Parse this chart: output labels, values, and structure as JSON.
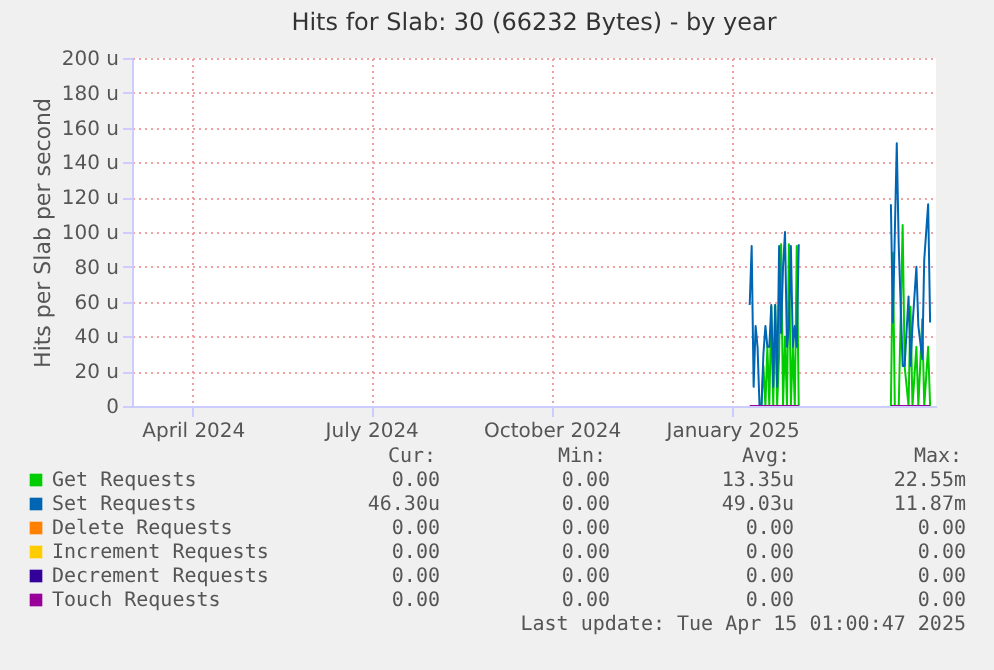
{
  "chart_data": {
    "type": "line",
    "title": "Hits for Slab: 30 (66232 Bytes) - by year",
    "ylabel": "Hits per Slab per second",
    "xlim": [
      "2024-03-01",
      "2025-04-15"
    ],
    "xticks": [
      {
        "value": "2024-04-01",
        "label": "April 2024"
      },
      {
        "value": "2024-07-01",
        "label": "July 2024"
      },
      {
        "value": "2024-10-01",
        "label": "October 2024"
      },
      {
        "value": "2025-01-01",
        "label": "January 2025"
      }
    ],
    "ylim": [
      0,
      200
    ],
    "yticks": [
      0,
      {
        "value": 20,
        "label": "20 u"
      },
      {
        "value": 40,
        "label": "40 u"
      },
      {
        "value": 60,
        "label": "60 u"
      },
      {
        "value": 80,
        "label": "80 u"
      },
      {
        "value": 100,
        "label": "100 u"
      },
      {
        "value": 120,
        "label": "120 u"
      },
      {
        "value": 140,
        "label": "140 u"
      },
      {
        "value": 160,
        "label": "160 u"
      },
      {
        "value": 180,
        "label": "180 u"
      },
      {
        "value": 200,
        "label": "200 u"
      }
    ],
    "grid": true,
    "legend": "bottom",
    "series": [
      {
        "name": "Get Requests",
        "color": "#00cc00",
        "x": [
          "2025-01-16",
          "2025-01-17",
          "2025-01-18",
          "2025-01-19",
          "2025-01-20",
          "2025-01-21",
          "2025-01-22",
          "2025-01-23",
          "2025-01-24",
          "2025-01-25",
          "2025-01-26",
          "2025-01-27",
          "2025-01-28",
          "2025-01-29",
          "2025-01-30",
          "2025-01-31",
          "2025-02-01",
          "2025-02-02",
          "2025-02-03",
          "2025-02-04",
          "2025-02-20",
          "2025-03-23",
          "2025-03-24",
          "2025-03-25",
          "2025-03-27",
          "2025-03-29",
          "2025-03-30",
          "2025-04-01",
          "2025-04-02",
          "2025-04-03",
          "2025-04-05",
          "2025-04-06",
          "2025-04-08",
          "2025-04-09",
          "2025-04-11",
          "2025-04-12"
        ],
        "values": [
          0,
          23,
          0,
          34,
          0,
          57,
          0,
          58,
          0,
          30,
          93,
          0,
          40,
          0,
          93,
          0,
          34,
          0,
          92,
          0,
          null,
          0,
          88,
          0,
          0,
          104,
          23,
          0,
          57,
          0,
          34,
          0,
          50,
          0,
          34,
          0
        ]
      },
      {
        "name": "Set Requests",
        "color": "#0066b3",
        "x": [
          "2025-01-10",
          "2025-01-11",
          "2025-01-12",
          "2025-01-13",
          "2025-01-14",
          "2025-01-15",
          "2025-01-16",
          "2025-01-17",
          "2025-01-18",
          "2025-01-19",
          "2025-01-20",
          "2025-01-21",
          "2025-01-22",
          "2025-01-23",
          "2025-01-24",
          "2025-01-25",
          "2025-01-26",
          "2025-01-27",
          "2025-01-28",
          "2025-01-29",
          "2025-01-30",
          "2025-01-31",
          "2025-02-01",
          "2025-02-02",
          "2025-02-03",
          "2025-02-04",
          "2025-02-20",
          "2025-03-23",
          "2025-03-24",
          "2025-03-26",
          "2025-03-27",
          "2025-03-29",
          "2025-03-30",
          "2025-04-01",
          "2025-04-02",
          "2025-04-03",
          "2025-04-05",
          "2025-04-06",
          "2025-04-08",
          "2025-04-09",
          "2025-04-11",
          "2025-04-12"
        ],
        "values": [
          58,
          92,
          11,
          46,
          34,
          0,
          0,
          30,
          46,
          34,
          34,
          58,
          11,
          58,
          11,
          92,
          42,
          80,
          100,
          34,
          46,
          92,
          34,
          46,
          34,
          93,
          null,
          116,
          48,
          151,
          92,
          23,
          23,
          63,
          23,
          46,
          80,
          46,
          27,
          84,
          116,
          48
        ]
      },
      {
        "name": "Delete Requests",
        "color": "#ff8000"
      },
      {
        "name": "Increment Requests",
        "color": "#ffcc00"
      },
      {
        "name": "Decrement Requests",
        "color": "#330099"
      },
      {
        "name": "Touch Requests",
        "color": "#990099",
        "x": [
          "2025-01-10",
          "2025-02-04",
          "2025-02-20",
          "2025-03-23",
          "2025-04-12"
        ],
        "values": [
          0,
          0,
          null,
          0,
          0
        ]
      }
    ],
    "annotations": [
      "Cur:",
      "Min:",
      "Avg:",
      "Max:",
      "0.00",
      "0.00",
      "13.35u",
      "22.55m",
      "46.30u",
      "0.00",
      "49.03u",
      "11.87m",
      "0.00",
      "0.00",
      "0.00",
      "0.00",
      "0.00",
      "0.00",
      "0.00",
      "0.00",
      "0.00",
      "0.00",
      "0.00",
      "0.00",
      "0.00",
      "0.00",
      "0.00",
      "0.00",
      "Last update: Tue Apr 15 01:00:47 2025"
    ]
  }
}
